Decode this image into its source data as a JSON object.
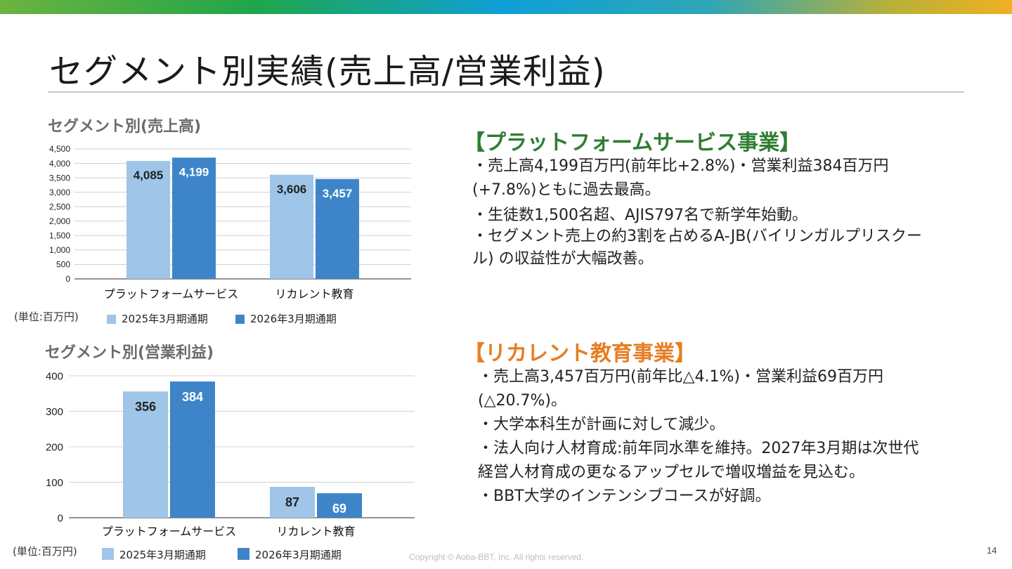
{
  "slide": {
    "title": "セグメント別実績(売上高/営業利益)",
    "footer": "Copyright © Aoba-BBT, Inc.  All rights reserved.",
    "page_number": "14"
  },
  "colors": {
    "series_2025": "#9fc5e8",
    "series_2026": "#3d85c8",
    "platform_heading": "#2e7d32",
    "recurrent_heading": "#e67e22"
  },
  "chart_data": [
    {
      "type": "bar",
      "title": "セグメント別(売上高)",
      "unit_note": "(単位:百万円)",
      "categories": [
        "プラットフォームサービス",
        "リカレント教育"
      ],
      "series": [
        {
          "name": "2025年3月期通期",
          "values": [
            4085,
            3606
          ],
          "labels": [
            "4,085",
            "3,606"
          ]
        },
        {
          "name": "2026年3月期通期",
          "values": [
            4199,
            3457
          ],
          "labels": [
            "4,199",
            "3,457"
          ]
        }
      ],
      "ylim": [
        0,
        4500
      ],
      "yticks": [
        0,
        500,
        1000,
        1500,
        2000,
        2500,
        3000,
        3500,
        4000,
        4500
      ],
      "ytick_labels": [
        "0",
        "500",
        "1,000",
        "1,500",
        "2,000",
        "2,500",
        "3,000",
        "3,500",
        "4,000",
        "4,500"
      ],
      "grid": true,
      "legend": "bottom"
    },
    {
      "type": "bar",
      "title": "セグメント別(営業利益)",
      "unit_note": "(単位:百万円)",
      "categories": [
        "プラットフォームサービス",
        "リカレント教育"
      ],
      "series": [
        {
          "name": "2025年3月期通期",
          "values": [
            356,
            87
          ],
          "labels": [
            "356",
            "87"
          ]
        },
        {
          "name": "2026年3月期通期",
          "values": [
            384,
            69
          ],
          "labels": [
            "384",
            "69"
          ]
        }
      ],
      "ylim": [
        0,
        400
      ],
      "yticks": [
        0,
        100,
        200,
        300,
        400
      ],
      "ytick_labels": [
        "0",
        "100",
        "200",
        "300",
        "400"
      ],
      "grid": true,
      "legend": "bottom"
    }
  ],
  "platform": {
    "heading": "【プラットフォームサービス事業】",
    "bullets": [
      "・売上高4,199百万円(前年比+2.8%)・営業利益384百万円",
      "(+7.8%)ともに過去最高。",
      "・生徒数1,500名超、AJIS797名で新学年始動。",
      "・セグメント売上の約3割を占めるA-JB(バイリンガルプリスクー",
      "ル) の収益性が大幅改善。"
    ]
  },
  "recurrent": {
    "heading": "【リカレント教育事業】",
    "bullets": [
      "・売上高3,457百万円(前年比△4.1%)・営業利益69百万円",
      "(△20.7%)。",
      "・大学本科生が計画に対して減少。",
      "・法人向け人材育成:前年同水準を維持。2027年3月期は次世代",
      "経営人材育成の更なるアップセルで増収増益を見込む。",
      "・BBT大学のインテンシブコースが好調。"
    ]
  }
}
